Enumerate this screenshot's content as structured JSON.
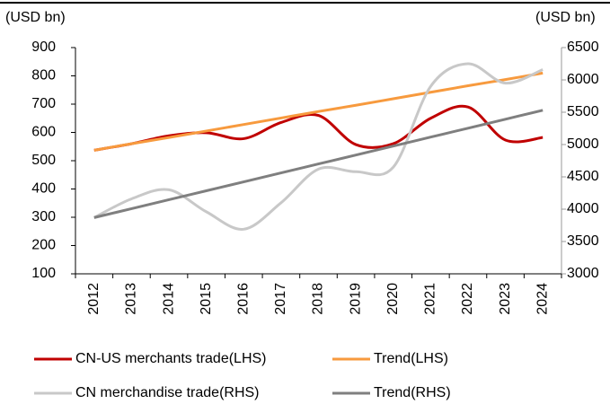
{
  "chart_data": {
    "type": "line",
    "y_label": "(USD bn)",
    "y2_label": "(USD bn)",
    "categories": [
      "2012",
      "2013",
      "2014",
      "2015",
      "2016",
      "2017",
      "2018",
      "2019",
      "2020",
      "2021",
      "2022",
      "2023",
      "2024"
    ],
    "series": [
      {
        "name": "CN-US merchants trade(LHS)",
        "color": "#c00000",
        "values": [
          537,
          560,
          588,
          599,
          578,
          635,
          660,
          557,
          560,
          650,
          690,
          573,
          582
        ]
      },
      {
        "name": "Trend(LHS)",
        "color": "#f79a3e",
        "values": [
          537,
          560,
          582,
          605,
          628,
          651,
          674,
          696,
          719,
          742,
          765,
          787,
          810
        ]
      },
      {
        "name": "CN merchandise trade(RHS)",
        "color": "#c8c8c8",
        "axis": "y2",
        "values": [
          3870,
          4160,
          4300,
          3960,
          3690,
          4100,
          4620,
          4580,
          4650,
          5900,
          6250,
          5950,
          6160
        ]
      },
      {
        "name": "Trend(RHS)",
        "color": "#7f7f7f",
        "axis": "y2",
        "values": [
          3870,
          4008,
          4147,
          4285,
          4423,
          4562,
          4700,
          4838,
          4977,
          5115,
          5253,
          5392,
          5530
        ]
      }
    ],
    "ylim": [
      100,
      900
    ],
    "yticks": [
      100,
      200,
      300,
      400,
      500,
      600,
      700,
      800,
      900
    ],
    "y2lim": [
      3000,
      6500
    ],
    "y2ticks": [
      3000,
      3500,
      4000,
      4500,
      5000,
      5500,
      6000,
      6500
    ],
    "smooth": true
  }
}
